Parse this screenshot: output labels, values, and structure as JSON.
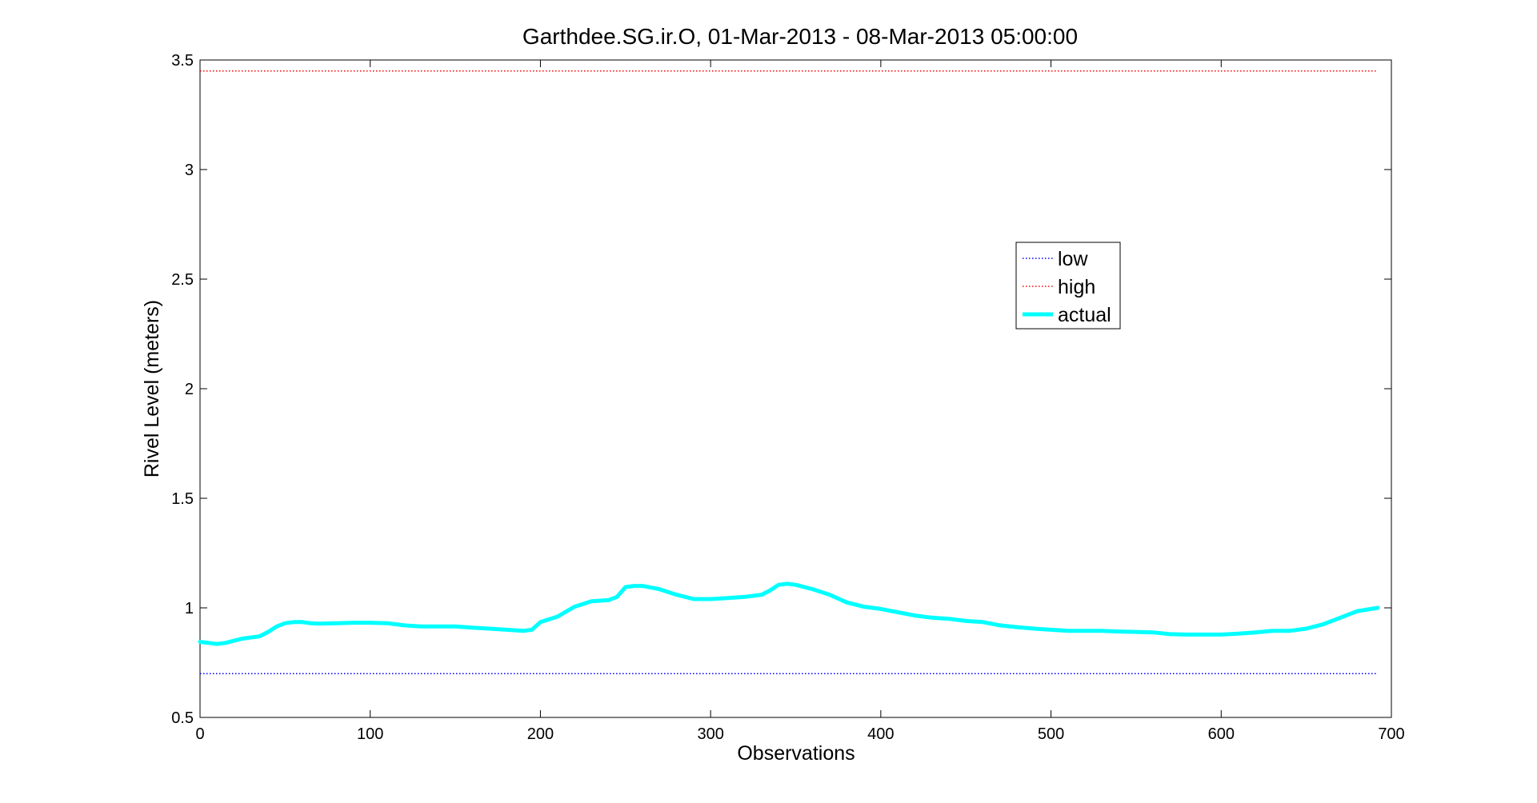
{
  "chart_data": {
    "type": "line",
    "title": "Garthdee.SG.ir.O, 01-Mar-2013 - 08-Mar-2013 05:00:00",
    "xlabel": "Observations",
    "ylabel": "Rivel Level (meters)",
    "xlim": [
      0,
      700
    ],
    "ylim": [
      0.5,
      3.5
    ],
    "x_ticks": [
      0,
      100,
      200,
      300,
      400,
      500,
      600,
      700
    ],
    "y_ticks": [
      0.5,
      1,
      1.5,
      2,
      2.5,
      3,
      3.5
    ],
    "x_tick_labels": [
      "0",
      "100",
      "200",
      "300",
      "400",
      "500",
      "600",
      "700"
    ],
    "y_tick_labels": [
      "0.5",
      "1",
      "1.5",
      "2",
      "2.5",
      "3",
      "3.5"
    ],
    "grid": false,
    "legend_position": "upper-right-center",
    "series": [
      {
        "name": "low",
        "style": "dotted",
        "color": "#0000ff",
        "x": [
          0,
          692
        ],
        "y": [
          0.7,
          0.7
        ]
      },
      {
        "name": "high",
        "style": "dotted",
        "color": "#ff0000",
        "x": [
          0,
          692
        ],
        "y": [
          3.45,
          3.45
        ]
      },
      {
        "name": "actual",
        "style": "solid",
        "color": "#00ffff",
        "x": [
          0,
          5,
          10,
          15,
          20,
          25,
          30,
          35,
          40,
          45,
          50,
          55,
          60,
          65,
          70,
          80,
          90,
          100,
          110,
          120,
          130,
          140,
          150,
          160,
          170,
          180,
          190,
          195,
          200,
          210,
          220,
          230,
          240,
          245,
          250,
          255,
          260,
          270,
          280,
          290,
          300,
          310,
          320,
          330,
          335,
          340,
          345,
          350,
          360,
          370,
          380,
          390,
          400,
          410,
          420,
          430,
          440,
          450,
          460,
          470,
          480,
          490,
          500,
          510,
          520,
          530,
          540,
          550,
          560,
          570,
          580,
          590,
          600,
          610,
          620,
          630,
          640,
          650,
          660,
          670,
          680,
          692
        ],
        "y": [
          0.845,
          0.84,
          0.835,
          0.84,
          0.85,
          0.86,
          0.865,
          0.87,
          0.89,
          0.915,
          0.93,
          0.935,
          0.935,
          0.93,
          0.928,
          0.93,
          0.932,
          0.932,
          0.93,
          0.92,
          0.915,
          0.915,
          0.915,
          0.91,
          0.905,
          0.9,
          0.895,
          0.9,
          0.935,
          0.96,
          1.005,
          1.03,
          1.035,
          1.05,
          1.095,
          1.1,
          1.1,
          1.085,
          1.06,
          1.04,
          1.04,
          1.045,
          1.05,
          1.06,
          1.08,
          1.105,
          1.11,
          1.105,
          1.085,
          1.06,
          1.025,
          1.005,
          0.995,
          0.98,
          0.965,
          0.955,
          0.95,
          0.94,
          0.935,
          0.92,
          0.912,
          0.905,
          0.9,
          0.895,
          0.895,
          0.895,
          0.892,
          0.89,
          0.888,
          0.88,
          0.878,
          0.878,
          0.878,
          0.882,
          0.888,
          0.895,
          0.895,
          0.905,
          0.925,
          0.955,
          0.985,
          1.0
        ]
      }
    ]
  }
}
